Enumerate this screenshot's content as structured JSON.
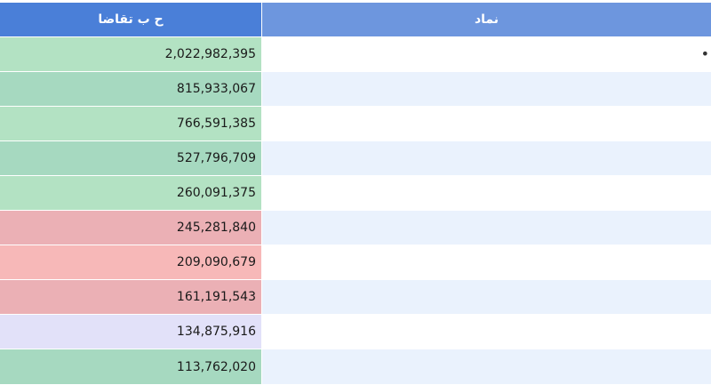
{
  "table": {
    "headers": {
      "demand": "ح ب تقاضا",
      "symbol": "نماد"
    },
    "rows": [
      {
        "demand": "2,022,982,395",
        "symbol": "•",
        "demand_color": "#b3e2c3",
        "symbol_bg": "#ffffff"
      },
      {
        "demand": "815,933,067",
        "symbol": "",
        "demand_color": "#a6d9c0",
        "symbol_bg": "#eaf2fd"
      },
      {
        "demand": "766,591,385",
        "symbol": "",
        "demand_color": "#b3e2c3",
        "symbol_bg": "#ffffff"
      },
      {
        "demand": "527,796,709",
        "symbol": "",
        "demand_color": "#a6d9c0",
        "symbol_bg": "#eaf2fd"
      },
      {
        "demand": "260,091,375",
        "symbol": "",
        "demand_color": "#b3e2c3",
        "symbol_bg": "#ffffff"
      },
      {
        "demand": "245,281,840",
        "symbol": "",
        "demand_color": "#ebb0b5",
        "symbol_bg": "#eaf2fd"
      },
      {
        "demand": "209,090,679",
        "symbol": "",
        "demand_color": "#f7b8b8",
        "symbol_bg": "#ffffff"
      },
      {
        "demand": "161,191,543",
        "symbol": "",
        "demand_color": "#ebb0b5",
        "symbol_bg": "#eaf2fd"
      },
      {
        "demand": "134,875,916",
        "symbol": "",
        "demand_color": "#e2e1f9",
        "symbol_bg": "#ffffff"
      },
      {
        "demand": "113,762,020",
        "symbol": "",
        "demand_color": "#a6d9c0",
        "symbol_bg": "#eaf2fd"
      }
    ]
  }
}
